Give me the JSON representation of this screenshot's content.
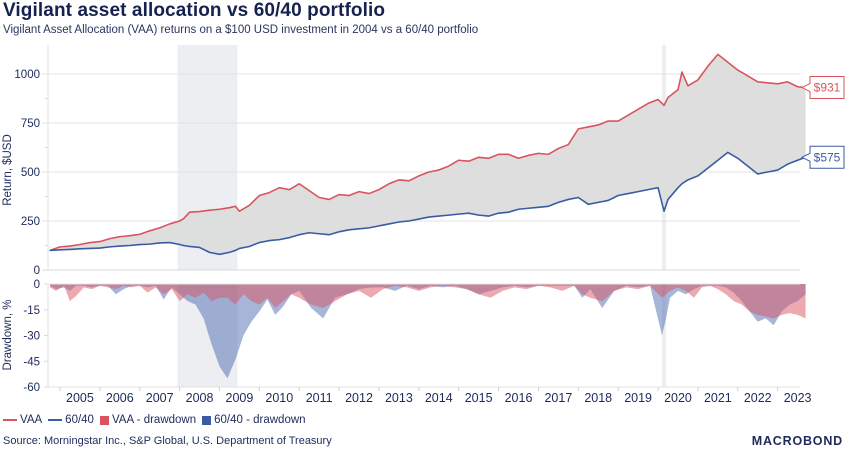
{
  "header": {
    "title": "Vigilant asset allocation vs 60/40 portfolio",
    "subtitle": "Vigilant Asset Allocation (VAA) returns on a $100 USD investment in 2004 vs a 60/40 portfolio"
  },
  "legend": {
    "items": [
      {
        "label": "VAA",
        "kind": "line",
        "color": "#d9545f"
      },
      {
        "label": "60/40",
        "kind": "line",
        "color": "#3b5ba5"
      },
      {
        "label": "VAA - drawdown",
        "kind": "box",
        "color": "#d9545f"
      },
      {
        "label": "60/40 - drawdown",
        "kind": "box",
        "color": "#3b5ba5"
      }
    ]
  },
  "footer": {
    "source": "Source: Morningstar Inc., S&P Global, U.S. Department of Treasury",
    "logo": "MACROBOND"
  },
  "colors": {
    "vaa": "#d9545f",
    "sixty_forty": "#3b5ba5",
    "fill_between": "#dcdcdc",
    "recession_shade": "#eceef1",
    "grid": "#e3e3e3",
    "text": "#1d2a5b"
  },
  "chart_data": [
    {
      "type": "line",
      "panel": "top",
      "title": "Vigilant asset allocation vs 60/40 portfolio",
      "xlabel": "",
      "ylabel": "Return, $USD",
      "ylim": [
        0,
        1100
      ],
      "yticks": [
        0,
        250,
        500,
        750,
        1000
      ],
      "xlim": [
        2004.7,
        2024.05
      ],
      "grid": true,
      "fill_between_series": true,
      "shaded_periods": [
        [
          2007.95,
          2009.45
        ],
        [
          2020.1,
          2020.2
        ]
      ],
      "end_labels": [
        {
          "series": "VAA",
          "text": "$931"
        },
        {
          "series": "60/40",
          "text": "$575"
        }
      ],
      "x": [
        2004.75,
        2005.0,
        2005.25,
        2005.5,
        2005.75,
        2006.0,
        2006.25,
        2006.5,
        2006.75,
        2007.0,
        2007.25,
        2007.5,
        2007.75,
        2008.0,
        2008.1,
        2008.25,
        2008.5,
        2008.75,
        2009.0,
        2009.25,
        2009.4,
        2009.5,
        2009.75,
        2010.0,
        2010.25,
        2010.5,
        2010.75,
        2011.0,
        2011.25,
        2011.5,
        2011.75,
        2012.0,
        2012.25,
        2012.5,
        2012.75,
        2013.0,
        2013.25,
        2013.5,
        2013.75,
        2014.0,
        2014.25,
        2014.5,
        2014.75,
        2015.0,
        2015.25,
        2015.5,
        2015.75,
        2016.0,
        2016.25,
        2016.5,
        2016.75,
        2017.0,
        2017.25,
        2017.5,
        2017.75,
        2018.0,
        2018.25,
        2018.5,
        2018.75,
        2019.0,
        2019.25,
        2019.5,
        2019.75,
        2020.0,
        2020.15,
        2020.25,
        2020.5,
        2020.6,
        2020.75,
        2021.0,
        2021.25,
        2021.5,
        2021.75,
        2022.0,
        2022.25,
        2022.5,
        2022.75,
        2023.0,
        2023.25,
        2023.5,
        2023.7
      ],
      "series": [
        {
          "name": "VAA",
          "values": [
            100,
            118,
            122,
            130,
            140,
            145,
            160,
            170,
            175,
            182,
            200,
            215,
            235,
            250,
            262,
            295,
            298,
            305,
            310,
            318,
            325,
            300,
            330,
            380,
            395,
            420,
            410,
            440,
            405,
            370,
            360,
            385,
            380,
            400,
            390,
            410,
            440,
            460,
            455,
            480,
            500,
            510,
            530,
            560,
            555,
            575,
            570,
            590,
            590,
            570,
            585,
            595,
            590,
            620,
            640,
            720,
            730,
            740,
            760,
            760,
            790,
            820,
            850,
            870,
            840,
            880,
            920,
            1010,
            940,
            970,
            1040,
            1100,
            1060,
            1020,
            990,
            960,
            955,
            950,
            960,
            935,
            931
          ]
        },
        {
          "name": "60/40",
          "values": [
            100,
            103,
            105,
            108,
            110,
            112,
            118,
            122,
            125,
            130,
            132,
            138,
            140,
            130,
            125,
            120,
            115,
            90,
            80,
            90,
            100,
            110,
            120,
            140,
            150,
            155,
            165,
            180,
            190,
            185,
            180,
            195,
            205,
            210,
            215,
            225,
            235,
            245,
            250,
            260,
            270,
            275,
            280,
            285,
            290,
            280,
            275,
            290,
            295,
            310,
            315,
            320,
            325,
            345,
            360,
            370,
            335,
            345,
            355,
            380,
            390,
            400,
            410,
            420,
            300,
            360,
            420,
            440,
            460,
            480,
            520,
            560,
            600,
            570,
            530,
            490,
            500,
            510,
            540,
            560,
            575
          ]
        }
      ]
    },
    {
      "type": "area",
      "panel": "bottom",
      "xlabel": "",
      "ylabel": "Drawdown, %",
      "ylim": [
        -60,
        0
      ],
      "yticks": [
        0,
        -15,
        -30,
        -45,
        -60
      ],
      "grid": false,
      "categories": [
        "2005",
        "2006",
        "2007",
        "2008",
        "2009",
        "2010",
        "2011",
        "2012",
        "2013",
        "2014",
        "2015",
        "2016",
        "2017",
        "2018",
        "2019",
        "2020",
        "2021",
        "2022",
        "2023"
      ],
      "x": [
        2004.75,
        2004.9,
        2005.1,
        2005.25,
        2005.4,
        2005.6,
        2005.8,
        2006.0,
        2006.2,
        2006.4,
        2006.6,
        2006.8,
        2007.0,
        2007.2,
        2007.4,
        2007.6,
        2007.8,
        2008.0,
        2008.2,
        2008.4,
        2008.6,
        2008.8,
        2009.0,
        2009.2,
        2009.4,
        2009.6,
        2009.8,
        2010.0,
        2010.2,
        2010.4,
        2010.6,
        2010.8,
        2011.0,
        2011.3,
        2011.6,
        2011.9,
        2012.2,
        2012.5,
        2012.8,
        2013.1,
        2013.4,
        2013.7,
        2014.0,
        2014.3,
        2014.6,
        2014.9,
        2015.2,
        2015.5,
        2015.8,
        2016.1,
        2016.4,
        2016.7,
        2017.0,
        2017.3,
        2017.6,
        2017.9,
        2018.1,
        2018.3,
        2018.6,
        2018.9,
        2019.2,
        2019.5,
        2019.8,
        2020.1,
        2020.2,
        2020.3,
        2020.5,
        2020.7,
        2020.9,
        2021.1,
        2021.3,
        2021.5,
        2021.7,
        2021.9,
        2022.1,
        2022.3,
        2022.5,
        2022.7,
        2022.9,
        2023.1,
        2023.3,
        2023.5,
        2023.7
      ],
      "series": [
        {
          "name": "VAA - drawdown",
          "values": [
            -2,
            -4,
            -1,
            -10,
            -7,
            -2,
            -3,
            -1,
            -2,
            -3,
            -1,
            -2,
            -1,
            -5,
            -2,
            -6,
            -3,
            -10,
            -6,
            -8,
            -5,
            -10,
            -8,
            -8,
            -12,
            -6,
            -10,
            -12,
            -8,
            -14,
            -10,
            -6,
            -8,
            -12,
            -14,
            -10,
            -6,
            -4,
            -8,
            -3,
            -1,
            -2,
            -4,
            -2,
            -1,
            -2,
            -3,
            -6,
            -8,
            -4,
            -2,
            -3,
            -1,
            -2,
            -4,
            -1,
            -6,
            -8,
            -10,
            -4,
            -2,
            -3,
            -1,
            -8,
            -6,
            -4,
            -2,
            -4,
            -8,
            -2,
            -1,
            -3,
            -6,
            -10,
            -12,
            -16,
            -18,
            -19,
            -20,
            -18,
            -17,
            -18,
            -20
          ]
        },
        {
          "name": "60/40 - drawdown",
          "values": [
            -1,
            -3,
            -2,
            -4,
            -1,
            -1,
            -2,
            -1,
            -1,
            -6,
            -3,
            -1,
            -1,
            -2,
            -1,
            -9,
            -2,
            -6,
            -10,
            -12,
            -20,
            -35,
            -48,
            -55,
            -44,
            -30,
            -22,
            -16,
            -9,
            -18,
            -13,
            -6,
            -4,
            -14,
            -20,
            -8,
            -6,
            -3,
            -2,
            -2,
            -4,
            -1,
            -3,
            -1,
            -2,
            -1,
            -3,
            -6,
            -4,
            -2,
            -1,
            -2,
            -1,
            -1,
            -1,
            -1,
            -8,
            -3,
            -14,
            -4,
            -1,
            -2,
            -1,
            -30,
            -20,
            -8,
            -4,
            -6,
            -3,
            -1,
            -1,
            -1,
            -2,
            -5,
            -10,
            -16,
            -22,
            -20,
            -24,
            -16,
            -12,
            -10,
            -6
          ]
        }
      ]
    }
  ]
}
